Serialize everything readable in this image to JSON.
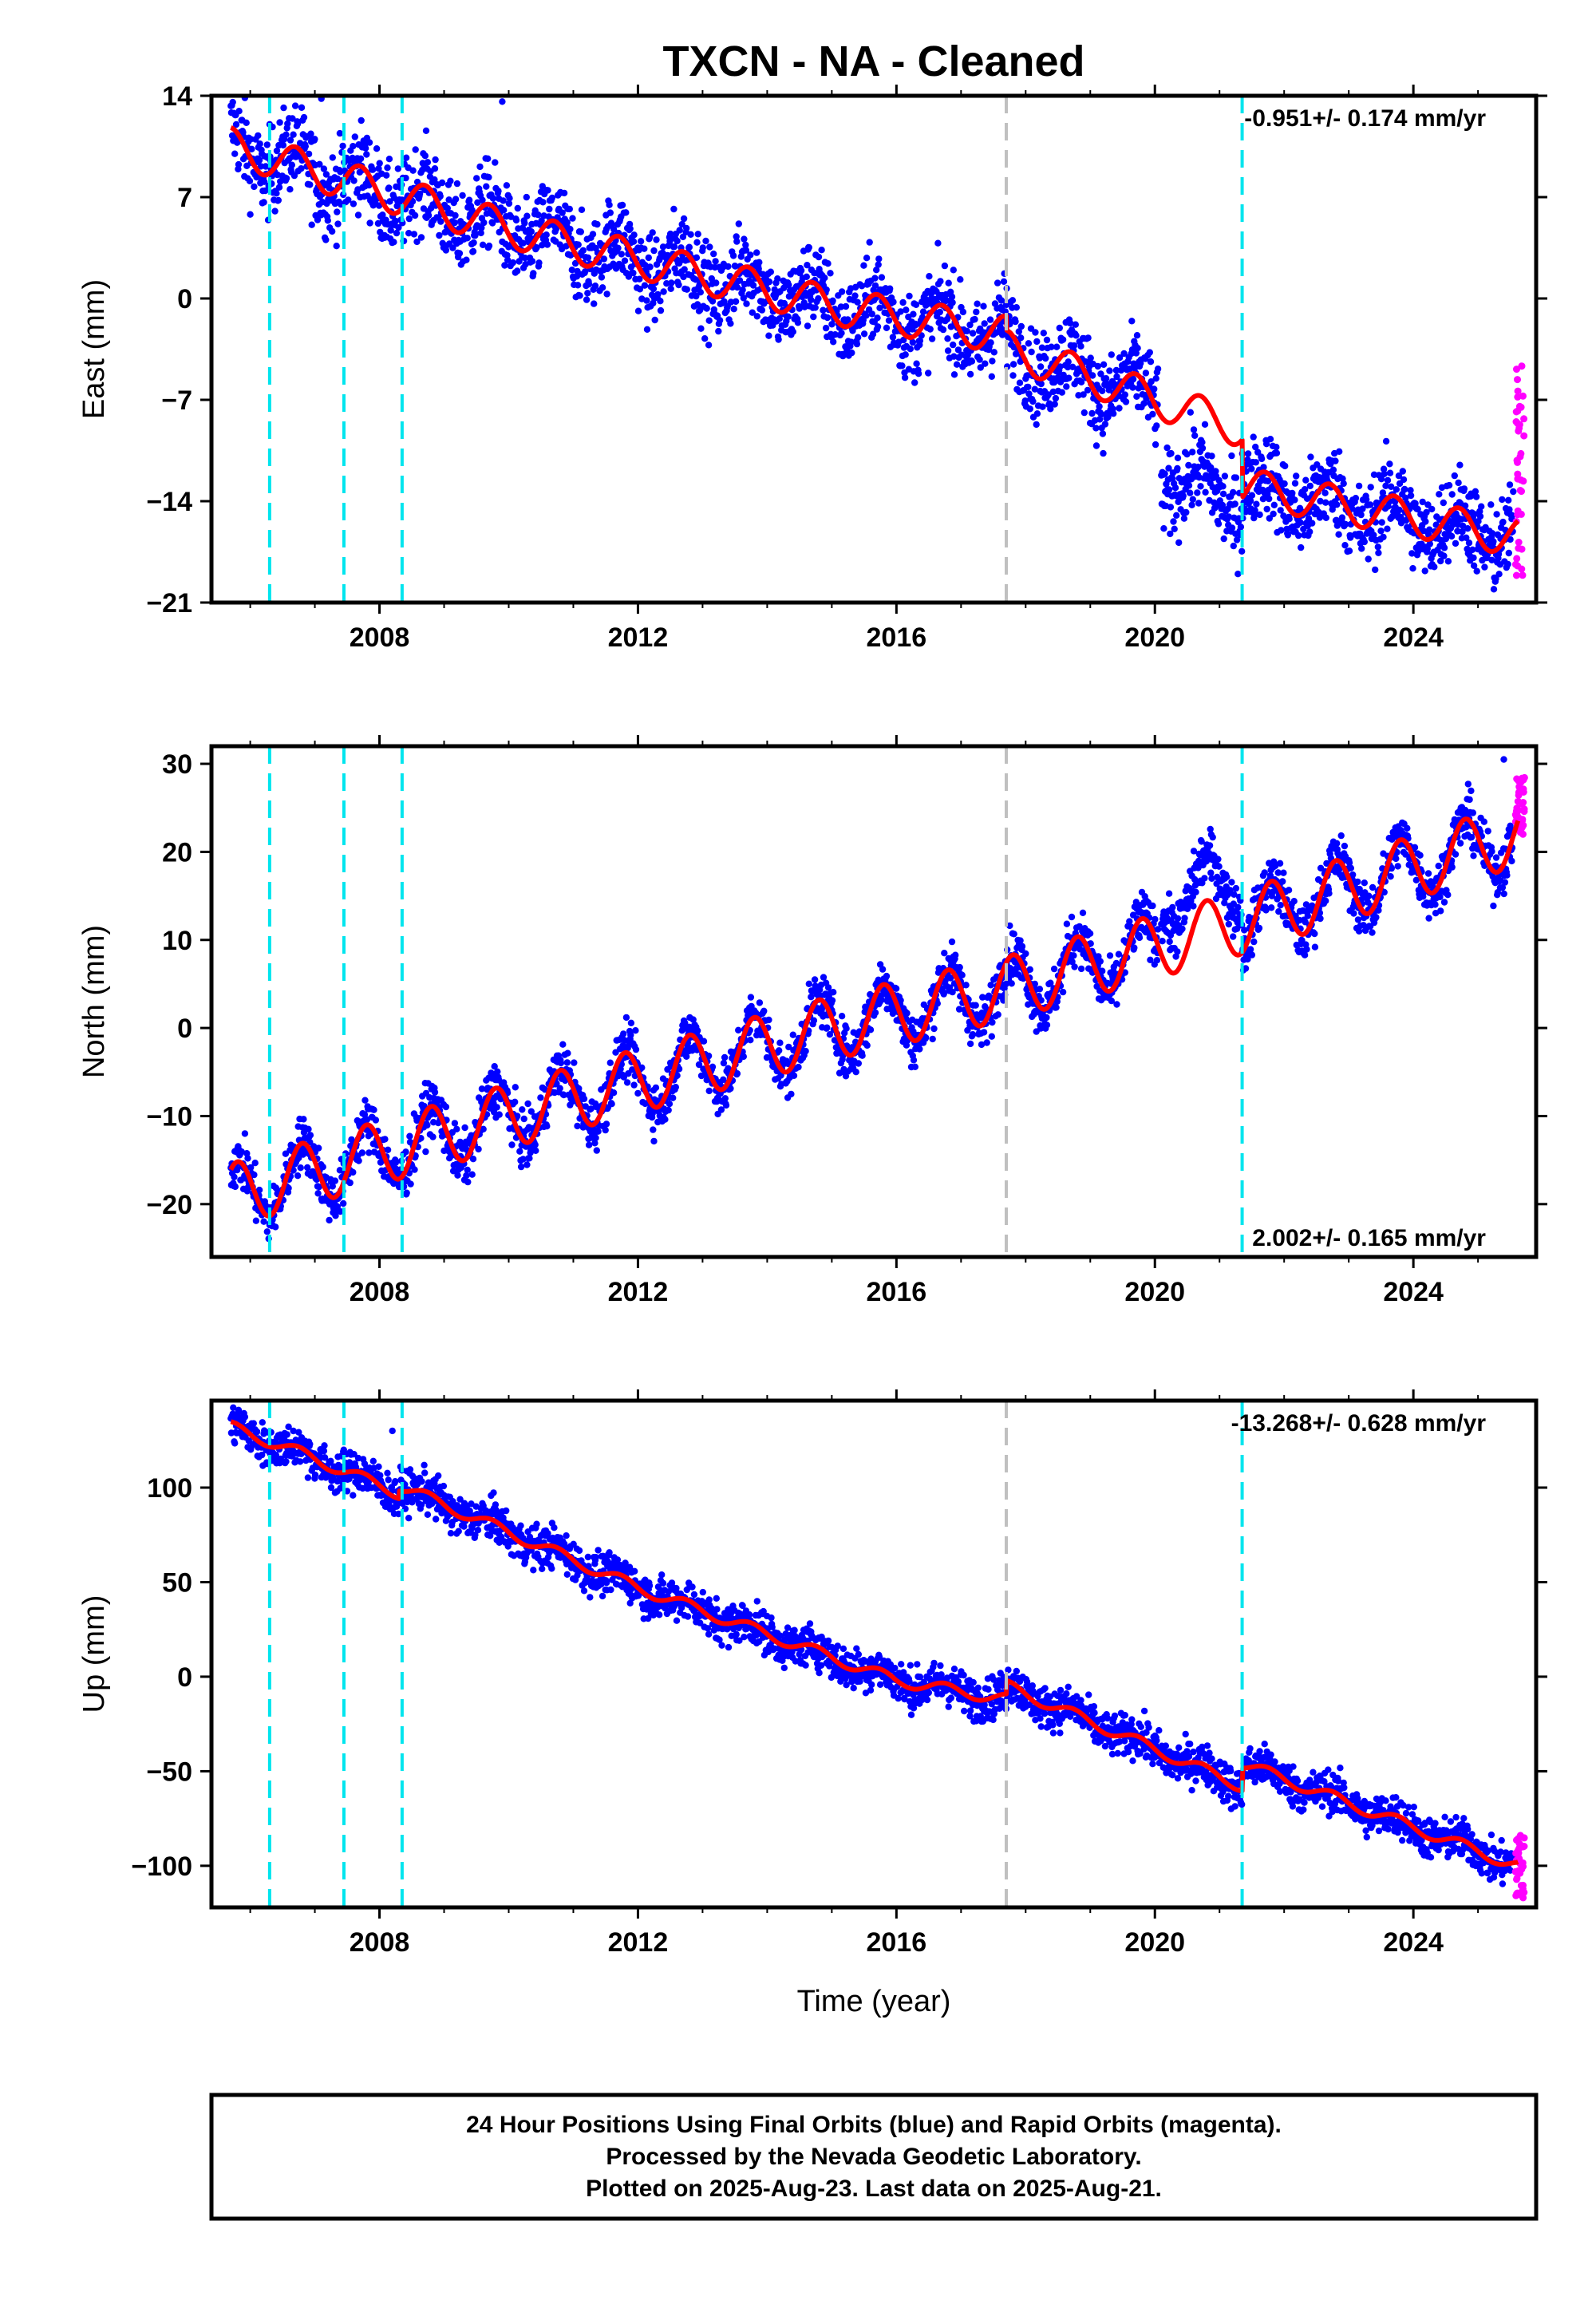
{
  "figure": {
    "title": "TXCN  - NA - Cleaned",
    "xlabel": "Time (year)",
    "footer": [
      "24 Hour Positions Using Final Orbits (blue) and Rapid Orbits (magenta).",
      "Processed by the Nevada Geodetic Laboratory.",
      "Plotted on 2025-Aug-23. Last data on 2025-Aug-21."
    ],
    "colors": {
      "final": "#0000ff",
      "rapid": "#ff00ff",
      "model": "#ff0000",
      "equipment": "#00e5ee",
      "earthquake": "#c0c0c0"
    }
  },
  "chart_data": [
    {
      "type": "scatter",
      "component": "East",
      "ylabel": "East (mm)",
      "xlim": [
        2005.4,
        2025.9
      ],
      "ylim": [
        -21,
        14
      ],
      "yticks": [
        14,
        7,
        0,
        -7,
        -14,
        -21
      ],
      "xticks": [
        2008,
        2012,
        2016,
        2020,
        2024
      ],
      "rate": "-0.951+/- 0.174 mm/yr",
      "rate_pos": "top-right",
      "equipment_changes": [
        2006.3,
        2007.45,
        2008.35,
        2021.35
      ],
      "earthquake": [
        2017.7
      ],
      "model": {
        "trend_pts": [
          [
            2005.7,
            10.5
          ],
          [
            2010.0,
            4.8
          ],
          [
            2015.0,
            -0.5
          ],
          [
            2017.7,
            -2.5
          ],
          [
            2017.71,
            -3.5
          ],
          [
            2021.35,
            -9.0
          ],
          [
            2021.36,
            -13.0
          ],
          [
            2025.6,
            -16.5
          ]
        ],
        "amplitude": 1.3,
        "phase": 0.45
      },
      "final_orbits": {
        "segments": [
          [
            2005.7,
            2020.05
          ],
          [
            2020.1,
            2025.55
          ]
        ],
        "offset_after": {
          "year": 2020.07,
          "delta": -5.0
        },
        "noise": 1.5,
        "outliers": [
          [
            2009.9,
            13.6
          ],
          [
            2007.1,
            13.8
          ]
        ]
      },
      "rapid_orbits": {
        "x": [
          2025.58,
          2025.72
        ],
        "y_range": [
          -19.5,
          -3.5
        ]
      }
    },
    {
      "type": "scatter",
      "component": "North",
      "ylabel": "North (mm)",
      "xlim": [
        2005.4,
        2025.9
      ],
      "ylim": [
        -26,
        32
      ],
      "yticks": [
        30,
        20,
        10,
        0,
        -10,
        -20
      ],
      "xticks": [
        2008,
        2012,
        2016,
        2020,
        2024
      ],
      "rate": "2.002+/- 0.165 mm/yr",
      "rate_pos": "bottom-right",
      "equipment_changes": [
        2006.3,
        2007.45,
        2008.35,
        2021.35
      ],
      "earthquake": [
        2017.7
      ],
      "model": {
        "trend_pts": [
          [
            2005.7,
            -19.0
          ],
          [
            2010.0,
            -10.0
          ],
          [
            2015.0,
            0.0
          ],
          [
            2017.7,
            4.5
          ],
          [
            2021.35,
            12.0
          ],
          [
            2025.6,
            22.0
          ]
        ],
        "amplitude": 3.6,
        "phase": 0.55
      },
      "final_orbits": {
        "segments": [
          [
            2005.7,
            2020.05
          ],
          [
            2020.1,
            2025.55
          ]
        ],
        "offset_after": {
          "year": 2020.07,
          "delta": 5.0
        },
        "noise": 1.5,
        "outliers": [
          [
            2025.4,
            30.5
          ]
        ]
      },
      "rapid_orbits": {
        "x": [
          2025.58,
          2025.72
        ],
        "y_range": [
          22.0,
          28.5
        ]
      }
    },
    {
      "type": "scatter",
      "component": "Up",
      "ylabel": "Up (mm)",
      "xlim": [
        2005.4,
        2025.9
      ],
      "ylim": [
        -122,
        146
      ],
      "yticks": [
        100,
        50,
        0,
        -50,
        -100
      ],
      "xticks": [
        2008,
        2012,
        2016,
        2020,
        2024
      ],
      "rate": "-13.268+/- 0.628 mm/yr",
      "rate_pos": "top-right",
      "equipment_changes": [
        2006.3,
        2007.45,
        2008.35,
        2021.35
      ],
      "earthquake": [
        2017.7
      ],
      "model": {
        "trend_pts": [
          [
            2005.7,
            132
          ],
          [
            2006.8,
            118
          ],
          [
            2008.3,
            97
          ],
          [
            2008.31,
            101
          ],
          [
            2012.0,
            47
          ],
          [
            2016.0,
            -2
          ],
          [
            2017.7,
            -12
          ],
          [
            2017.71,
            -5
          ],
          [
            2021.35,
            -58
          ],
          [
            2021.36,
            -46
          ],
          [
            2025.6,
            -100
          ]
        ],
        "amplitude": 3.0,
        "phase": 0.5
      },
      "final_orbits": {
        "segments": [
          [
            2005.7,
            2025.55
          ]
        ],
        "offset_after": null,
        "noise": 5.5,
        "outliers": [
          [
            2008.2,
            130
          ]
        ]
      },
      "rapid_orbits": {
        "x": [
          2025.58,
          2025.72
        ],
        "y_range": [
          -117,
          -83
        ]
      }
    }
  ]
}
